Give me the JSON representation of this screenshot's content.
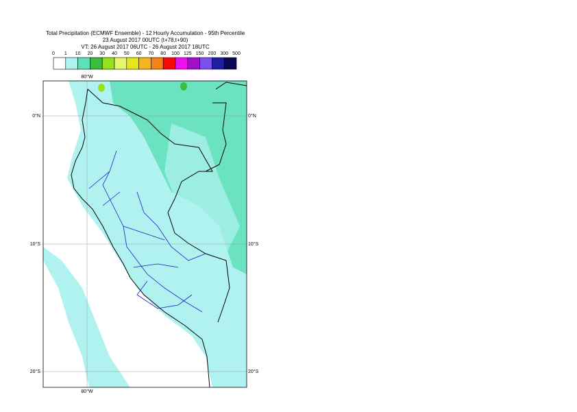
{
  "header": {
    "title": "Total Precipitation (ECMWF Ensemble) - 12 Hourly Accumulation - 95th Percentile",
    "run": "23 August 2017 00UTC (t+78,t+90)",
    "valid": "VT: 26 August 2017 06UTC - 26 August 2017 18UTC"
  },
  "legend": {
    "levels": [
      0,
      1,
      10,
      20,
      30,
      40,
      50,
      60,
      70,
      80,
      100,
      125,
      150,
      200,
      300,
      500
    ],
    "colors": [
      "#ffffff",
      "#b0f2f0",
      "#5fe0b8",
      "#3dbb3d",
      "#96e01e",
      "#e6f56e",
      "#e6e61e",
      "#f5b41e",
      "#f58214",
      "#f50a0a",
      "#ee10ee",
      "#a010c8",
      "#7a50f0",
      "#1e1ea0",
      "#0a0a50"
    ]
  },
  "map": {
    "lon_top": "80°W",
    "lon_bottom": "80°W",
    "lat_left": [
      "0°N",
      "10°S",
      "20°S"
    ],
    "lat_right": [
      "0°N",
      "10°S",
      "20°S"
    ]
  }
}
